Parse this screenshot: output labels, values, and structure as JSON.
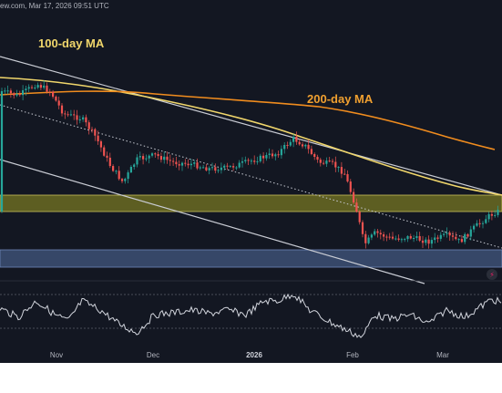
{
  "header": {
    "watermark": "ew.com, Mar 17, 2026 09:51 UTC"
  },
  "chart_data": {
    "type": "candlestick",
    "annotations": [
      "100-day MA",
      "200-day MA"
    ],
    "x_ticks": [
      "Nov",
      "Dec",
      "2026",
      "Feb",
      "Mar"
    ],
    "bold_tick": "2026",
    "colors": {
      "up": "#26a69a",
      "down": "#ef5350",
      "ma100": "#f0d66b",
      "ma200": "#f0a030",
      "resistance_zone": "#7a7a2a",
      "support_zone": "#3a4a6b",
      "rsi": "#d1d4dc"
    },
    "zones": [
      {
        "name": "resistance",
        "color": "#8a8a2a"
      },
      {
        "name": "support",
        "color": "#4a5f8a"
      }
    ]
  }
}
